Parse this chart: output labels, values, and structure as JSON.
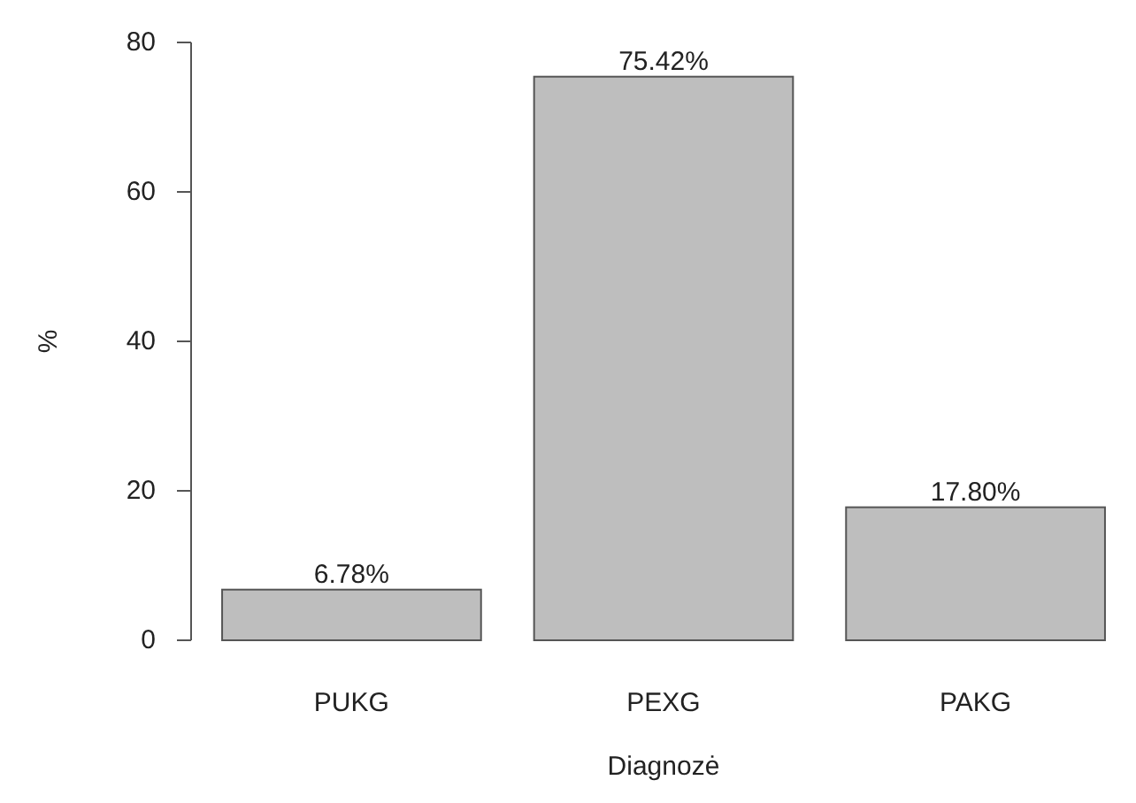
{
  "chart_data": {
    "type": "bar",
    "xlabel": "Diagnozė",
    "ylabel": "%",
    "categories": [
      "PUKG",
      "PEXG",
      "PAKG"
    ],
    "values": [
      6.78,
      75.42,
      17.8
    ],
    "value_labels": [
      "6.78%",
      "75.42%",
      "17.80%"
    ],
    "color": "#bebebe",
    "ylim": [
      0,
      80
    ],
    "yticks": [
      0,
      20,
      40,
      60,
      80
    ],
    "grid": false
  }
}
